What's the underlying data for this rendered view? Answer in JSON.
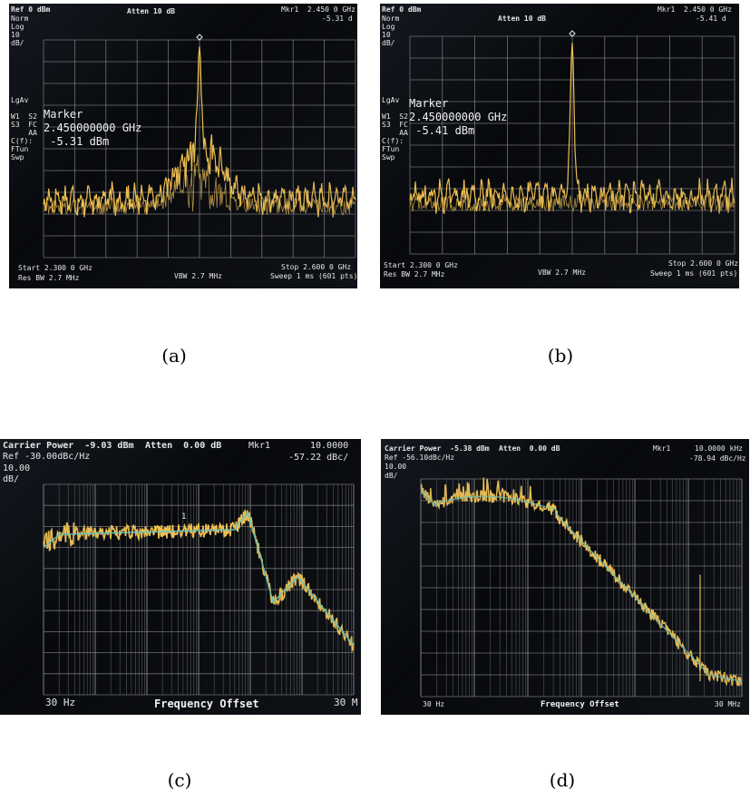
{
  "panels": {
    "a": {
      "caption": "(a)",
      "ref": "Ref 0 dBm",
      "atten": "Atten 10 dB",
      "mkr1": "Mkr1  2.450 0 GHz",
      "mkr_value": "-5.31 d",
      "left_labels": [
        "Norm",
        "Log",
        "10",
        "dB/",
        "",
        "",
        "",
        "",
        "",
        "",
        "LgAv",
        "",
        "W1  S2",
        "S3  FC",
        "    AA",
        "C(f):",
        "FTun",
        "Swp"
      ],
      "marker_title": "Marker",
      "marker_freq": "2.450000000 GHz",
      "marker_level": " -5.31 dBm",
      "start": "Start 2.300 0 GHz",
      "res_bw": "Res BW 2.7 MHz",
      "vbw": "VBW 2.7 MHz",
      "stop": "Stop 2.600 0 GHz",
      "sweep": "Sweep 1 ms (601 pts)"
    },
    "b": {
      "caption": "(b)",
      "ref": "Ref 0 dBm",
      "atten": "Atten 10 dB",
      "mkr1": "Mkr1  2.450 0 GHz",
      "mkr_value": "-5.41 d",
      "left_labels": [
        "Norm",
        "Log",
        "10",
        "dB/",
        "",
        "",
        "",
        "",
        "",
        "",
        "LgAv",
        "",
        "W1  S2",
        "S3  FC",
        "    AA",
        "C(f):",
        "FTun",
        "Swp"
      ],
      "marker_title": "Marker",
      "marker_freq": "2.450000000 GHz",
      "marker_level": " -5.41 dBm",
      "start": "Start 2.300 0 GHz",
      "res_bw": "Res BW 2.7 MHz",
      "vbw": "VBW 2.7 MHz",
      "stop": "Stop 2.600 0 GHz",
      "sweep": "Sweep 1 ms (601 pts)"
    },
    "c": {
      "caption": "(c)",
      "carrier": "Carrier Power  -9.03 dBm",
      "atten": "Atten  0.00 dB",
      "mkr1": "Mkr1",
      "mkr_freq": "10.0000",
      "ref": "Ref -30.00dBc/Hz",
      "mkr_value": "-57.22 dBc/",
      "scale": "10.00",
      "scale_unit": "dB/",
      "start": "30 Hz",
      "axis_title": "Frequency Offset",
      "stop": "30 M",
      "marker_num": "1"
    },
    "d": {
      "caption": "(d)",
      "carrier": "Carrier Power  -5.38 dBm",
      "atten": "Atten  0.00 dB",
      "mkr1": "Mkr1",
      "mkr_freq": "10.0000 kHz",
      "ref": "Ref -56.10dBc/Hz",
      "mkr_value": "-78.94 dBc/Hz",
      "scale": "10.00",
      "scale_unit": "dB/",
      "start": "30 Hz",
      "axis_title": "Frequency Offset",
      "stop": "30 MHz"
    }
  },
  "colors": {
    "trace": "#f0c050",
    "trace_smooth": "#5fc6c0",
    "grid": "#8d8d8d",
    "screen": "#07090c"
  }
}
